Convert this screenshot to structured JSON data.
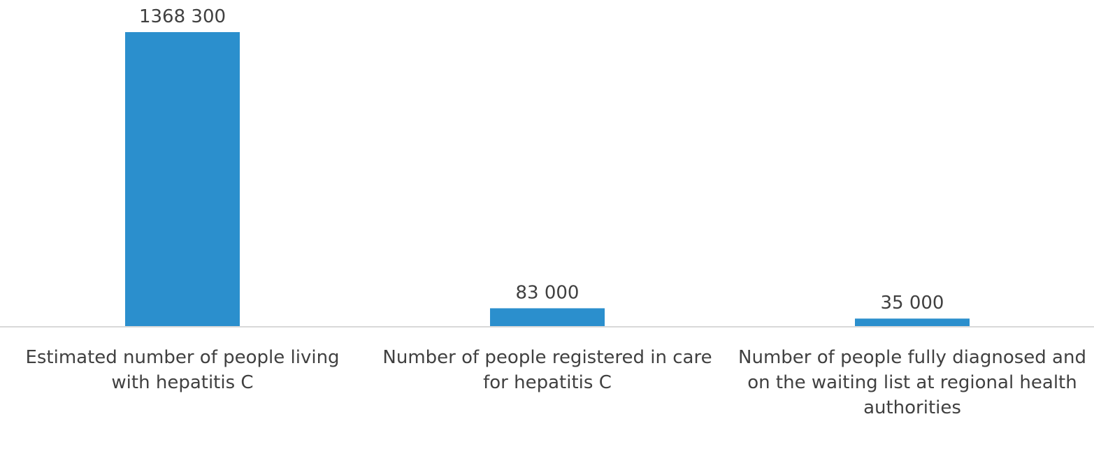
{
  "chart_data": {
    "type": "bar",
    "categories": [
      "Estimated number of people living with hepatitis C",
      "Number of people registered in care for hepatitis C",
      "Number of people fully diagnosed and on the waiting list at regional health authorities"
    ],
    "values": [
      1368300,
      83000,
      35000
    ],
    "data_labels": [
      "1368 300",
      "83 000",
      "35 000"
    ],
    "title": "",
    "xlabel": "",
    "ylabel": "",
    "ylim": [
      0,
      1368300
    ],
    "grid": false,
    "legend": "none",
    "colors": {
      "bar": "#2b8fcd",
      "axis": "#d9d9d9",
      "text": "#404040"
    }
  }
}
